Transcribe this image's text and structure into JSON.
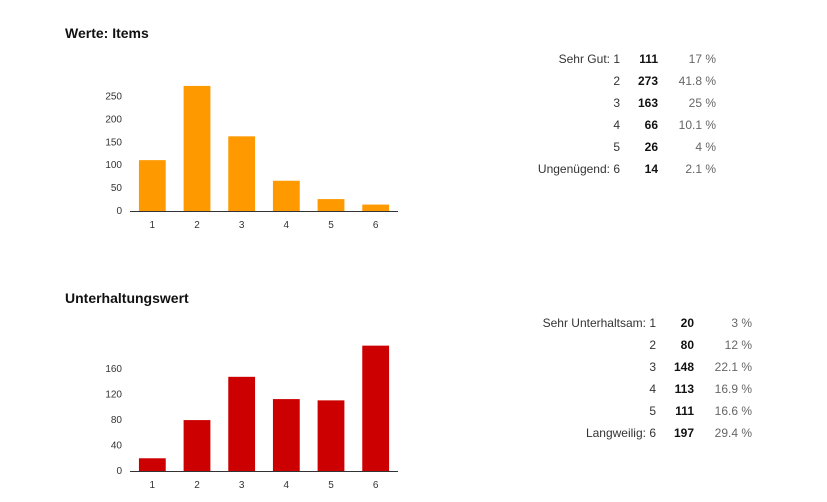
{
  "sections": [
    {
      "title": "Werte: Items",
      "rows": [
        {
          "label": "Sehr Gut: 1",
          "count": "111",
          "percent": "17 %"
        },
        {
          "label": "2",
          "count": "273",
          "percent": "41.8 %"
        },
        {
          "label": "3",
          "count": "163",
          "percent": "25 %"
        },
        {
          "label": "4",
          "count": "66",
          "percent": "10.1 %"
        },
        {
          "label": "5",
          "count": "26",
          "percent": "4 %"
        },
        {
          "label": "Ungenügend: 6",
          "count": "14",
          "percent": "2.1 %"
        }
      ]
    },
    {
      "title": "Unterhaltungswert",
      "rows": [
        {
          "label": "Sehr Unterhaltsam: 1",
          "count": "20",
          "percent": "3 %"
        },
        {
          "label": "2",
          "count": "80",
          "percent": "12 %"
        },
        {
          "label": "3",
          "count": "148",
          "percent": "22.1 %"
        },
        {
          "label": "4",
          "count": "113",
          "percent": "16.9 %"
        },
        {
          "label": "5",
          "count": "111",
          "percent": "16.6 %"
        },
        {
          "label": "Langweilig: 6",
          "count": "197",
          "percent": "29.4 %"
        }
      ]
    }
  ],
  "chart_data": [
    {
      "type": "bar",
      "title": "Werte: Items",
      "categories": [
        "1",
        "2",
        "3",
        "4",
        "5",
        "6"
      ],
      "values": [
        111,
        273,
        163,
        66,
        26,
        14
      ],
      "ylim": [
        0,
        275
      ],
      "yticks": [
        0,
        50,
        100,
        150,
        200,
        250
      ],
      "color": "#ff9900",
      "grid": false,
      "xlabel": "",
      "ylabel": ""
    },
    {
      "type": "bar",
      "title": "Unterhaltungswert",
      "categories": [
        "1",
        "2",
        "3",
        "4",
        "5",
        "6"
      ],
      "values": [
        20,
        80,
        148,
        113,
        111,
        197
      ],
      "ylim": [
        0,
        198
      ],
      "yticks": [
        0,
        40,
        80,
        120,
        160
      ],
      "color": "#cc0000",
      "grid": false,
      "xlabel": "",
      "ylabel": ""
    }
  ]
}
